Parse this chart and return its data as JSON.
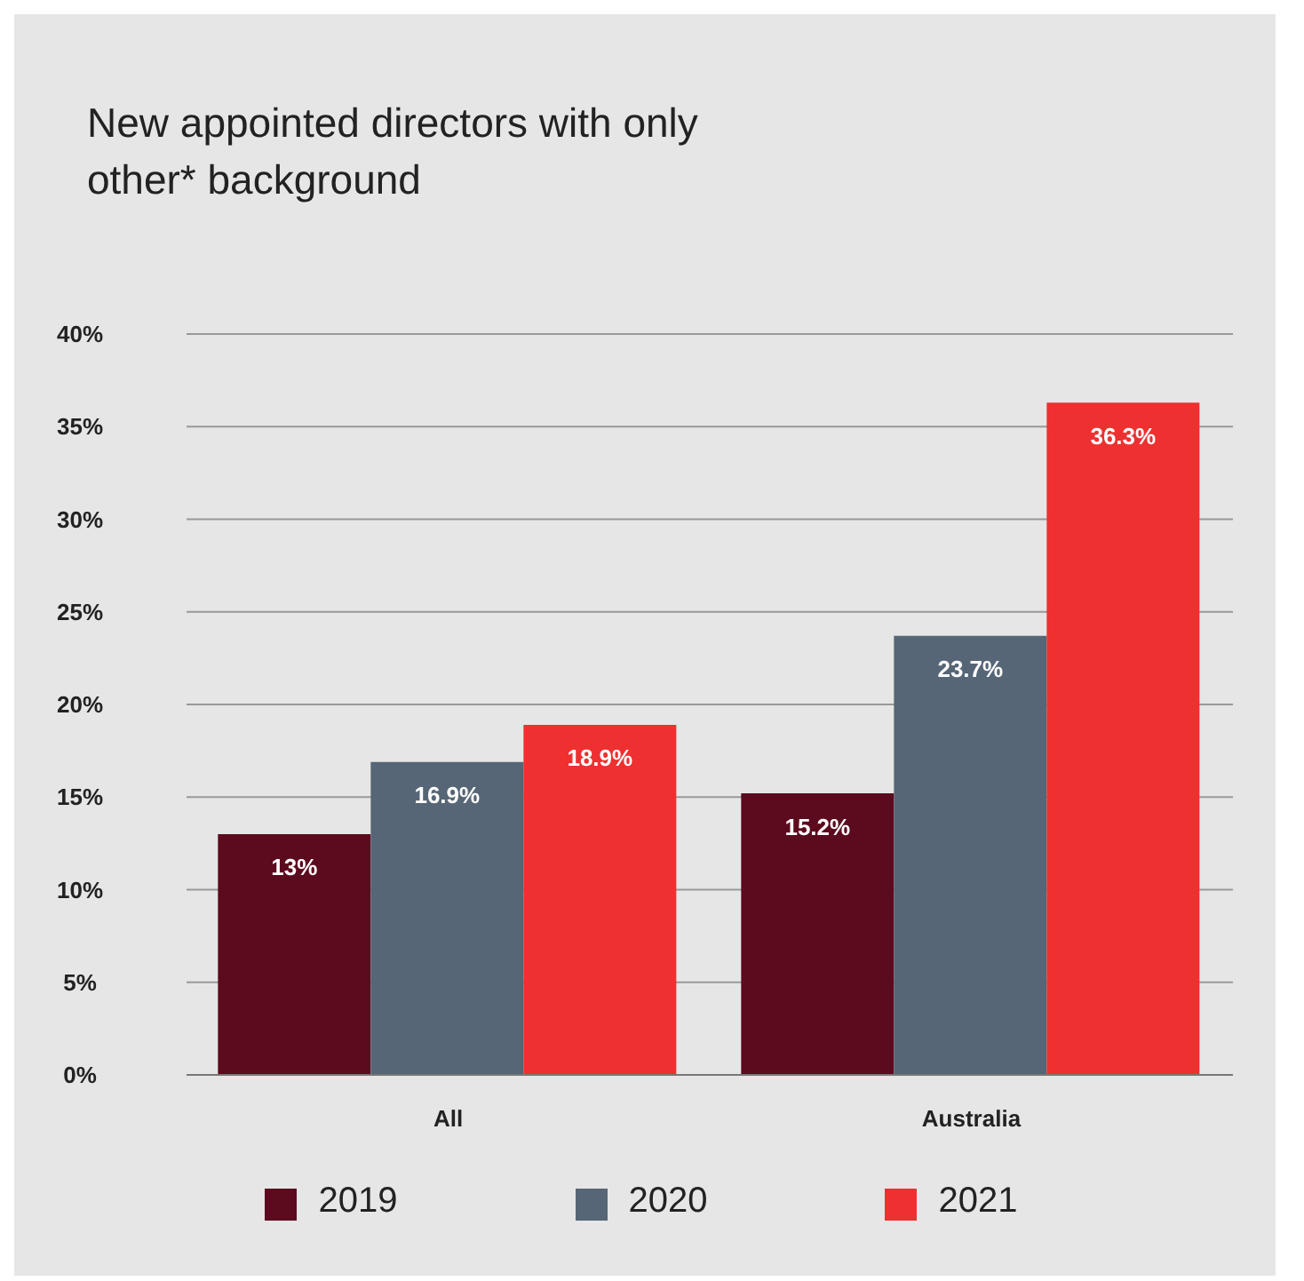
{
  "chart_data": {
    "type": "bar",
    "title": "New appointed directors with only other* background",
    "categories": [
      "All",
      "Australia"
    ],
    "series": [
      {
        "name": "2019",
        "color": "#5c0a1e",
        "values": [
          13,
          15.2
        ],
        "value_labels": [
          "13%",
          "15.2%"
        ]
      },
      {
        "name": "2020",
        "color": "#566676",
        "values": [
          16.9,
          23.7
        ],
        "value_labels": [
          "16.9%",
          "23.7%"
        ]
      },
      {
        "name": "2021",
        "color": "#ee3030",
        "values": [
          18.9,
          36.3
        ],
        "value_labels": [
          "18.9%",
          "36.3%"
        ]
      }
    ],
    "ylim": [
      0,
      40
    ],
    "yticks": [
      {
        "value": 0,
        "label": "0%"
      },
      {
        "value": 5,
        "label": "5%"
      },
      {
        "value": 10,
        "label": "10%"
      },
      {
        "value": 15,
        "label": "15%"
      },
      {
        "value": 20,
        "label": "20%"
      },
      {
        "value": 25,
        "label": "25%"
      },
      {
        "value": 30,
        "label": "30%"
      },
      {
        "value": 35,
        "label": "35%"
      },
      {
        "value": 40,
        "label": "40%"
      }
    ],
    "grid": "y",
    "legend": "bottom"
  }
}
